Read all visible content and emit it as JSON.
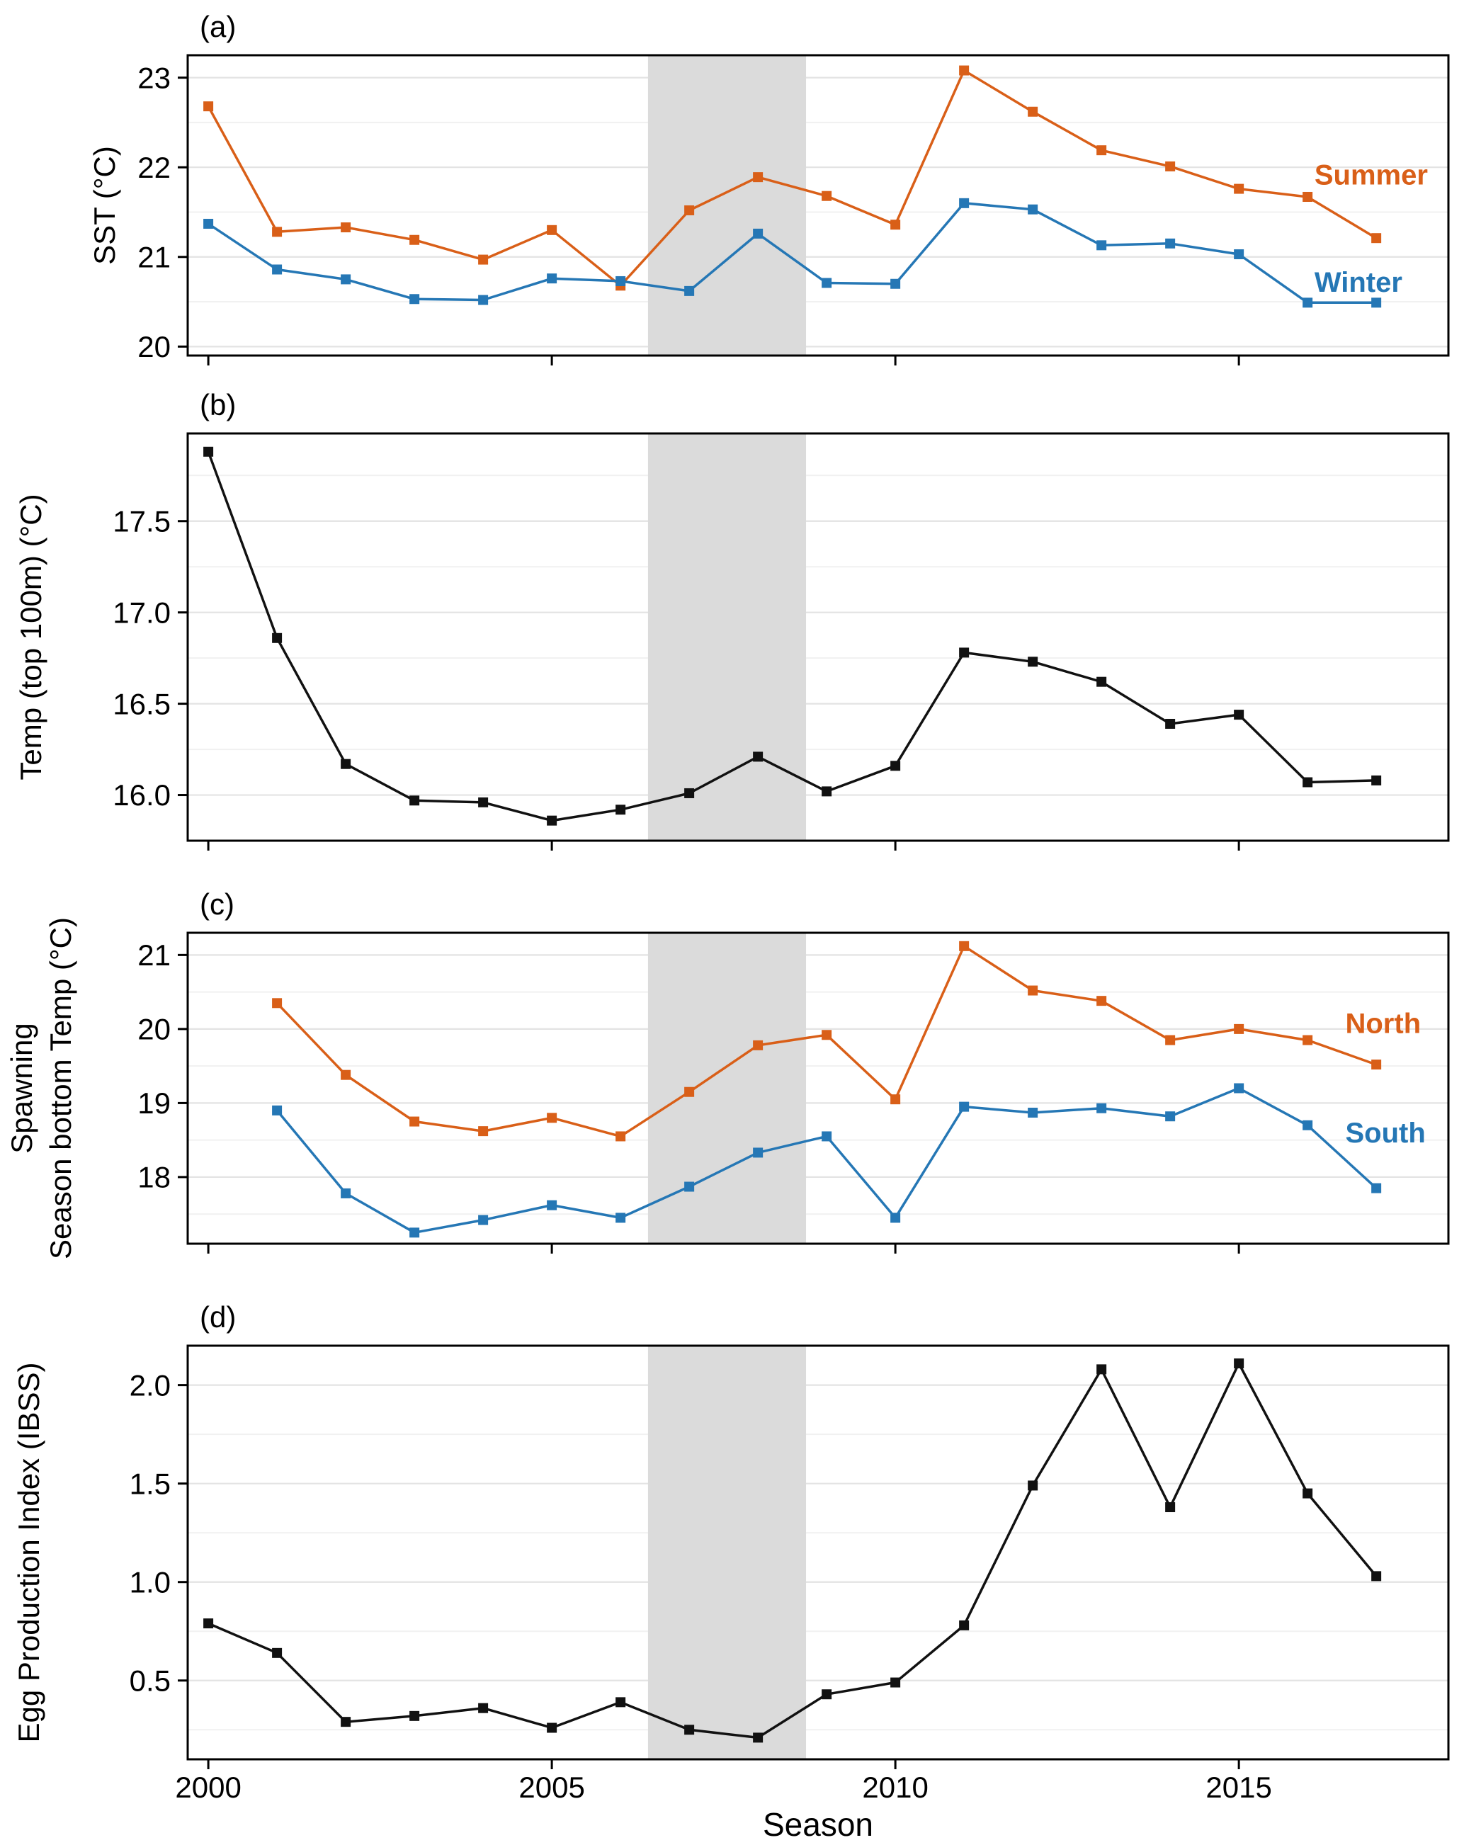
{
  "figure": {
    "panel_labels": [
      "(a)",
      "(b)",
      "(c)",
      "(d)"
    ],
    "x_axis": {
      "title": "Season",
      "tick_values": [
        2000,
        2005,
        2010,
        2015
      ],
      "tick_labels": [
        "2000",
        "2005",
        "2010",
        "2015"
      ],
      "range": [
        1999.7,
        2018.05
      ]
    },
    "shaded_band": {
      "x_start": 2006.4,
      "x_end": 2008.7,
      "color": "#dbdbdb"
    },
    "colors": {
      "orange": "#d95f18",
      "blue": "#2577b5",
      "black": "#111111",
      "grid_major": "#e3e3e3",
      "grid_minor": "#f1f1f1",
      "axis": "#000000",
      "background": "#ffffff"
    }
  },
  "chart_data": [
    {
      "type": "line",
      "panel": "a",
      "ylabel": [
        "SST (°C)"
      ],
      "ylim": [
        19.9,
        23.25
      ],
      "ytick_values": [
        20,
        21,
        22,
        23
      ],
      "ytick_labels": [
        "20",
        "21",
        "22",
        "23"
      ],
      "x": [
        2000,
        2001,
        2002,
        2003,
        2004,
        2005,
        2006,
        2007,
        2008,
        2009,
        2010,
        2011,
        2012,
        2013,
        2014,
        2015,
        2016,
        2017
      ],
      "series": [
        {
          "name": "Summer",
          "color_key": "orange",
          "values": [
            22.68,
            21.28,
            21.33,
            21.19,
            20.97,
            21.3,
            20.68,
            21.52,
            21.89,
            21.68,
            21.36,
            23.08,
            22.62,
            22.19,
            22.01,
            21.76,
            21.67,
            21.21
          ]
        },
        {
          "name": "Winter",
          "color_key": "blue",
          "values": [
            21.37,
            20.86,
            20.75,
            20.53,
            20.52,
            20.76,
            20.73,
            20.62,
            21.26,
            20.71,
            20.7,
            21.6,
            21.53,
            21.13,
            21.15,
            21.03,
            20.49,
            20.49
          ]
        }
      ],
      "legend": [
        {
          "label": "Summer",
          "color_key": "orange",
          "x": 2016.1,
          "y": 21.92
        },
        {
          "label": "Winter",
          "color_key": "blue",
          "x": 2016.1,
          "y": 20.72
        }
      ]
    },
    {
      "type": "line",
      "panel": "b",
      "ylabel": [
        "Temp (top 100m) (°C)"
      ],
      "ylim": [
        15.75,
        17.98
      ],
      "ytick_values": [
        16.0,
        16.5,
        17.0,
        17.5
      ],
      "ytick_labels": [
        "16.0",
        "16.5",
        "17.0",
        "17.5"
      ],
      "x": [
        2000,
        2001,
        2002,
        2003,
        2004,
        2005,
        2006,
        2007,
        2008,
        2009,
        2010,
        2011,
        2012,
        2013,
        2014,
        2015,
        2016,
        2017
      ],
      "series": [
        {
          "name": "Temp top 100m",
          "color_key": "black",
          "values": [
            17.88,
            16.86,
            16.17,
            15.97,
            15.96,
            15.86,
            15.92,
            16.01,
            16.21,
            16.02,
            16.16,
            16.78,
            16.73,
            16.62,
            16.39,
            16.44,
            16.07,
            16.08
          ]
        }
      ],
      "legend": []
    },
    {
      "type": "line",
      "panel": "c",
      "ylabel": [
        "Spawning",
        "Season bottom Temp (°C)"
      ],
      "ylim": [
        17.1,
        21.3
      ],
      "ytick_values": [
        18,
        19,
        20,
        21
      ],
      "ytick_labels": [
        "18",
        "19",
        "20",
        "21"
      ],
      "x": [
        2001,
        2002,
        2003,
        2004,
        2005,
        2006,
        2007,
        2008,
        2009,
        2010,
        2011,
        2012,
        2013,
        2014,
        2015,
        2016,
        2017
      ],
      "series": [
        {
          "name": "North",
          "color_key": "orange",
          "values": [
            20.35,
            19.38,
            18.75,
            18.62,
            18.8,
            18.55,
            19.15,
            19.78,
            19.92,
            19.05,
            21.12,
            20.52,
            20.38,
            19.85,
            20.0,
            19.85,
            19.52
          ]
        },
        {
          "name": "South",
          "color_key": "blue",
          "values": [
            18.9,
            17.78,
            17.25,
            17.42,
            17.62,
            17.45,
            17.87,
            18.33,
            18.55,
            17.45,
            18.95,
            18.87,
            18.93,
            18.82,
            19.2,
            18.7,
            17.85
          ]
        }
      ],
      "legend": [
        {
          "label": "North",
          "color_key": "orange",
          "x": 2016.55,
          "y": 20.08
        },
        {
          "label": "South",
          "color_key": "blue",
          "x": 2016.55,
          "y": 18.6
        }
      ]
    },
    {
      "type": "line",
      "panel": "d",
      "ylabel": [
        "Egg Production Index (IBSS)"
      ],
      "ylim": [
        0.1,
        2.2
      ],
      "ytick_values": [
        0.5,
        1.0,
        1.5,
        2.0
      ],
      "ytick_labels": [
        "0.5",
        "1.0",
        "1.5",
        "2.0"
      ],
      "x": [
        2000,
        2001,
        2002,
        2003,
        2004,
        2005,
        2006,
        2007,
        2008,
        2009,
        2010,
        2011,
        2012,
        2013,
        2014,
        2015,
        2016,
        2017
      ],
      "series": [
        {
          "name": "Egg Production Index",
          "color_key": "black",
          "values": [
            0.79,
            0.64,
            0.29,
            0.32,
            0.36,
            0.26,
            0.39,
            0.25,
            0.21,
            0.43,
            0.49,
            0.78,
            1.49,
            2.08,
            1.38,
            2.11,
            1.45,
            1.03
          ]
        }
      ],
      "legend": []
    }
  ]
}
